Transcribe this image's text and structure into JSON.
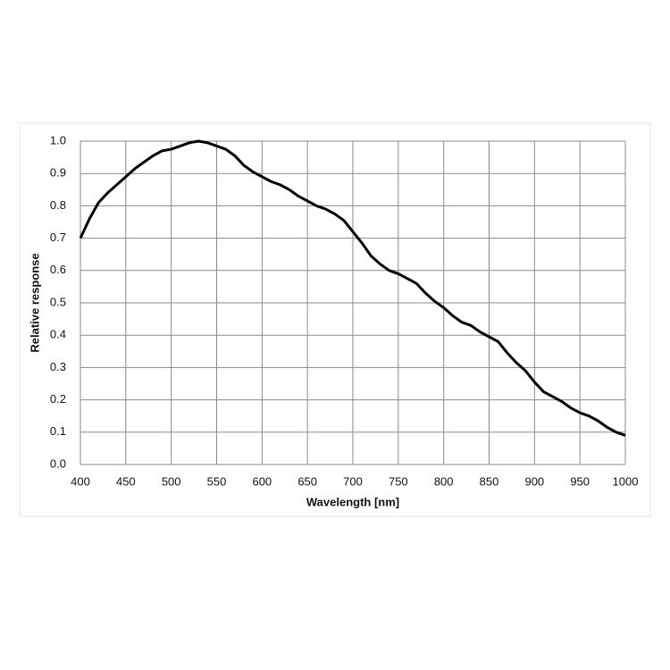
{
  "chart_data": {
    "type": "line",
    "xlabel": "Wavelength [nm]",
    "ylabel": "Relative response",
    "x": [
      400,
      410,
      420,
      430,
      440,
      450,
      460,
      470,
      480,
      490,
      500,
      510,
      520,
      530,
      540,
      550,
      560,
      570,
      580,
      590,
      600,
      610,
      620,
      630,
      640,
      650,
      660,
      670,
      680,
      690,
      700,
      710,
      720,
      730,
      740,
      750,
      760,
      770,
      780,
      790,
      800,
      810,
      820,
      830,
      840,
      850,
      860,
      870,
      880,
      890,
      900,
      910,
      920,
      930,
      940,
      950,
      960,
      970,
      980,
      990,
      1000
    ],
    "values": [
      0.7,
      0.76,
      0.81,
      0.84,
      0.865,
      0.89,
      0.915,
      0.935,
      0.955,
      0.97,
      0.975,
      0.985,
      0.995,
      1.0,
      0.995,
      0.985,
      0.975,
      0.955,
      0.925,
      0.905,
      0.89,
      0.875,
      0.865,
      0.85,
      0.83,
      0.815,
      0.8,
      0.79,
      0.775,
      0.755,
      0.72,
      0.685,
      0.645,
      0.62,
      0.6,
      0.59,
      0.575,
      0.56,
      0.53,
      0.505,
      0.485,
      0.46,
      0.44,
      0.43,
      0.41,
      0.395,
      0.38,
      0.345,
      0.315,
      0.29,
      0.255,
      0.225,
      0.21,
      0.195,
      0.175,
      0.16,
      0.15,
      0.135,
      0.115,
      0.1,
      0.09
    ],
    "color": "#000000",
    "xlim": [
      400,
      1000
    ],
    "xticks": [
      400,
      450,
      500,
      550,
      600,
      650,
      700,
      750,
      800,
      850,
      900,
      950,
      1000
    ],
    "ylim": [
      0,
      1
    ],
    "yticks": [
      {
        "value": 0,
        "label": "0.0"
      },
      0.1,
      0.2,
      0.3,
      0.4,
      0.5,
      0.6,
      0.7,
      0.8,
      0.9,
      {
        "value": 1,
        "label": "1.0"
      }
    ],
    "grid": true
  }
}
